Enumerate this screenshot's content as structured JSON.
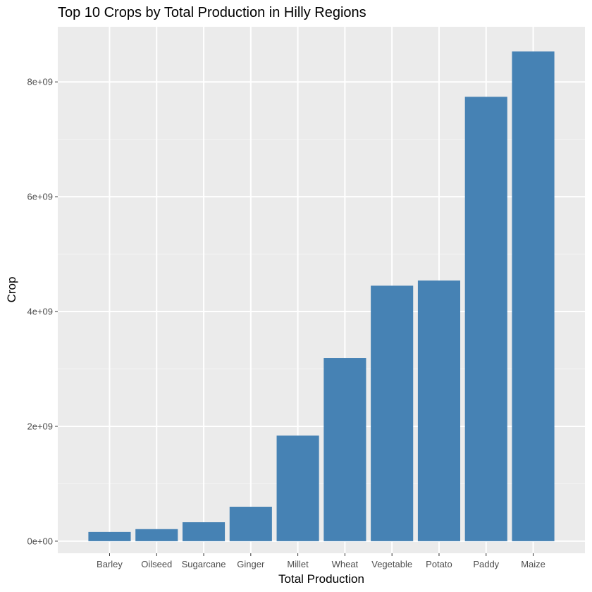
{
  "chart_data": {
    "type": "bar",
    "title": "Top 10 Crops by Total Production in Hilly Regions",
    "xlabel": "Total Production",
    "ylabel": "Crop",
    "categories": [
      "Barley",
      "Oilseed",
      "Sugarcane",
      "Ginger",
      "Millet",
      "Wheat",
      "Vegetable",
      "Potato",
      "Paddy",
      "Maize"
    ],
    "values": [
      160000000,
      210000000,
      330000000,
      600000000,
      1840000000,
      3190000000,
      4450000000,
      4540000000,
      7740000000,
      8530000000
    ],
    "ylim": [
      -210000000,
      8960000000
    ],
    "yticks": [
      0,
      2000000000,
      4000000000,
      6000000000,
      8000000000
    ],
    "ytick_labels": [
      "0e+00",
      "2e+09",
      "4e+09",
      "6e+09",
      "8e+09"
    ],
    "grid": true,
    "legend": "none",
    "colors": {
      "bar": "#4682B4",
      "panel": "#EBEBEB",
      "grid_major": "#FFFFFF",
      "grid_minor": "#F5F5F5",
      "tick": "#333333"
    }
  }
}
